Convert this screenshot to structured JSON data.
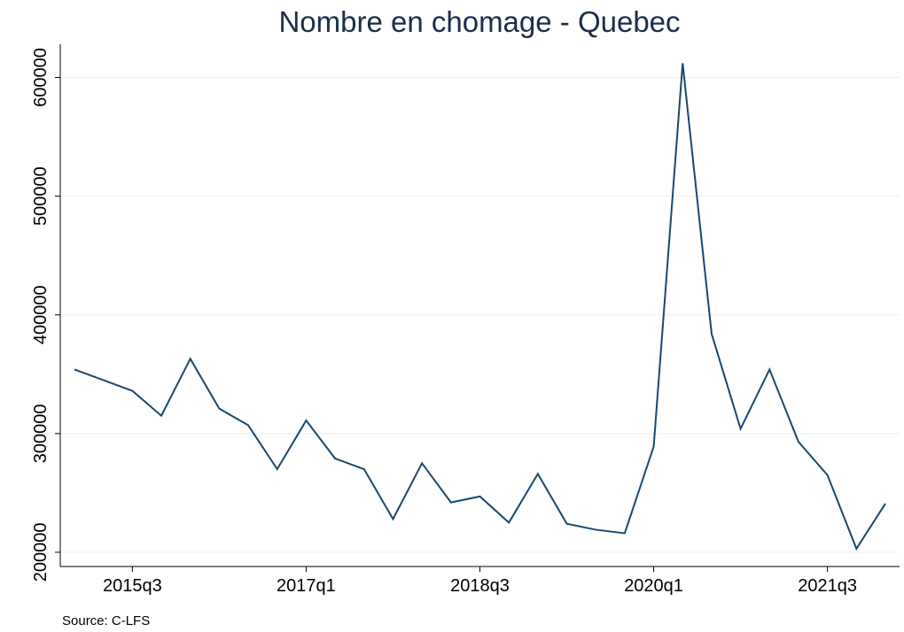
{
  "chart_data": {
    "type": "line",
    "title": "Nombre en chomage - Quebec",
    "note": "Source: C-LFS",
    "categories": [
      null,
      null,
      "2015q3",
      null,
      null,
      null,
      null,
      null,
      "2017q1",
      null,
      null,
      null,
      null,
      null,
      "2018q3",
      null,
      null,
      null,
      null,
      null,
      "2020q1",
      null,
      null,
      null,
      null,
      null,
      "2021q3",
      null,
      null
    ],
    "series": [
      {
        "name": "Nombre en chomage",
        "color": "#1a476f",
        "values": [
          354000,
          345000,
          336000,
          315000,
          363000,
          321000,
          307000,
          270000,
          311000,
          279000,
          270000,
          228000,
          275000,
          242000,
          247000,
          225000,
          266000,
          224000,
          219000,
          216000,
          289000,
          612000,
          384000,
          304000,
          354000,
          293000,
          265000,
          203000,
          241000
        ]
      }
    ],
    "ylim": [
      188000,
      628000
    ],
    "yticks": [
      200000,
      300000,
      400000,
      500000,
      600000
    ],
    "grid": true
  }
}
